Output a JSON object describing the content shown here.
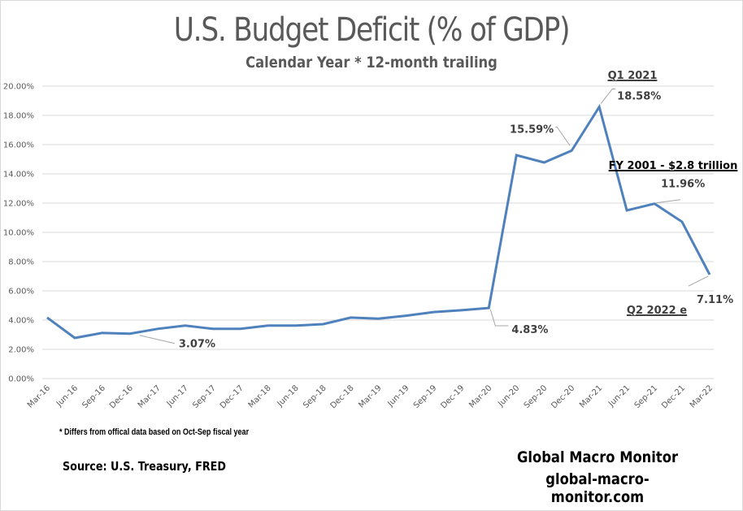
{
  "chart_data": {
    "type": "line",
    "title": "U.S. Budget Deficit (% of GDP)",
    "subtitle": "Calendar Year * 12-month trailing",
    "xlabel": "",
    "ylabel": "",
    "ylim": [
      0,
      20
    ],
    "ytick_step": 2,
    "yticks": [
      "0.00%",
      "2.00%",
      "4.00%",
      "6.00%",
      "8.00%",
      "10.00%",
      "12.00%",
      "14.00%",
      "16.00%",
      "18.00%",
      "20.00%"
    ],
    "grid": true,
    "legend": "none",
    "categories": [
      "Mar-16",
      "Jun-16",
      "Sep-16",
      "Dec-16",
      "Mar-17",
      "Jun-17",
      "Sep-17",
      "Dec-17",
      "Mar-18",
      "Jun-18",
      "Sep-18",
      "Dec-18",
      "Mar-19",
      "Jun-19",
      "Sep-19",
      "Dec-19",
      "Mar-20",
      "Jun-20",
      "Sep-20",
      "Dec-20",
      "Mar-21",
      "Jun-21",
      "Sep-21",
      "Dec-21",
      "Mar-22"
    ],
    "series": [
      {
        "name": "Budget Deficit (% of GDP)",
        "color": "#4f81bd",
        "values": [
          4.17,
          2.78,
          3.12,
          3.07,
          3.4,
          3.62,
          3.4,
          3.4,
          3.62,
          3.62,
          3.72,
          4.17,
          4.1,
          4.3,
          4.55,
          4.67,
          4.83,
          15.28,
          14.78,
          15.59,
          18.58,
          11.5,
          11.96,
          10.72,
          7.11
        ]
      }
    ],
    "data_labels": [
      {
        "category": "Dec-16",
        "text": "3.07%"
      },
      {
        "category": "Mar-20",
        "text": "4.83%"
      },
      {
        "category": "Dec-20",
        "text": "15.59%"
      },
      {
        "category": "Mar-21",
        "text": "18.58%"
      },
      {
        "category": "Sep-21",
        "text": "11.96%"
      },
      {
        "category": "Mar-22",
        "text": "7.11%"
      }
    ],
    "annotations": [
      {
        "text": "Q1 2021",
        "near": "Mar-21"
      },
      {
        "text": "FY 2001 - $2.8 trillion",
        "near": "Jun-21"
      },
      {
        "text": "Q2 2022 e",
        "near": "Mar-22"
      }
    ]
  },
  "footer": {
    "footnote": "* Differs from offical data based on Oct-Sep fiscal year",
    "source": "Source:  U.S. Treasury,  FRED",
    "brand_name": "Global Macro Monitor",
    "brand_url": "global-macro-monitor.com"
  }
}
